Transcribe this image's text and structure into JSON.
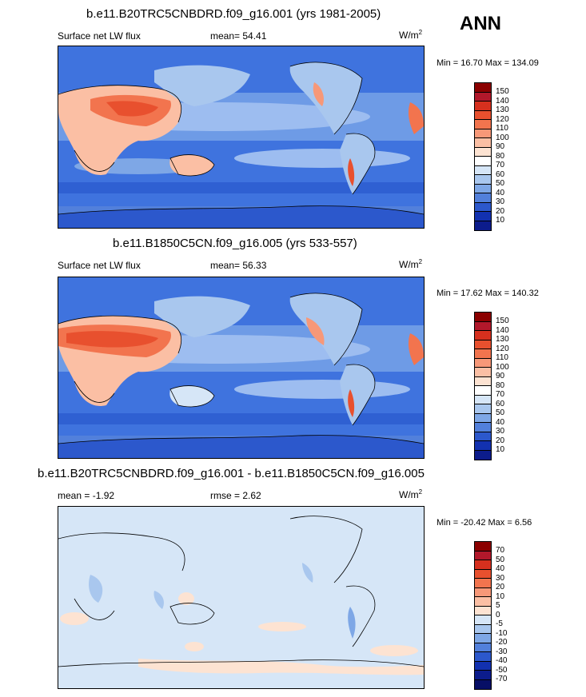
{
  "season": "ANN",
  "panels": [
    {
      "title": "b.e11.B20TRC5CNBDRD.f09_g16.001 (yrs 1981-2005)",
      "left_label": "Surface net LW flux",
      "center_label": "mean=  54.41",
      "units_base": "W/m",
      "units_sup": "2",
      "minmax": "Min =  16.70 Max = 134.09",
      "colorbar": {
        "labels": [
          "150",
          "140",
          "130",
          "120",
          "110",
          "100",
          "90",
          "80",
          "70",
          "60",
          "50",
          "40",
          "30",
          "20",
          "10"
        ],
        "colors": [
          "#8b0000",
          "#b2182b",
          "#d6301e",
          "#e8502e",
          "#f2744e",
          "#f79878",
          "#fbbfa4",
          "#fde3d2",
          "#ffffff",
          "#d6e6f7",
          "#a9c7ee",
          "#7ea7e6",
          "#5280db",
          "#2c58cc",
          "#1231b0",
          "#0c1c8c"
        ]
      }
    },
    {
      "title": "b.e11.B1850C5CN.f09_g16.005 (yrs 533-557)",
      "left_label": "Surface net LW flux",
      "center_label": "mean=  56.33",
      "units_base": "W/m",
      "units_sup": "2",
      "minmax": "Min =  17.62 Max = 140.32",
      "colorbar": {
        "labels": [
          "150",
          "140",
          "130",
          "120",
          "110",
          "100",
          "90",
          "80",
          "70",
          "60",
          "50",
          "40",
          "30",
          "20",
          "10"
        ],
        "colors": [
          "#8b0000",
          "#b2182b",
          "#d6301e",
          "#e8502e",
          "#f2744e",
          "#f79878",
          "#fbbfa4",
          "#fde3d2",
          "#ffffff",
          "#d6e6f7",
          "#a9c7ee",
          "#7ea7e6",
          "#5280db",
          "#2c58cc",
          "#1231b0",
          "#0c1c8c"
        ]
      }
    },
    {
      "title": "b.e11.B20TRC5CNBDRD.f09_g16.001 - b.e11.B1850C5CN.f09_g16.005",
      "left_label": "mean =  -1.92",
      "center_label": "rmse =   2.62",
      "units_base": "W/m",
      "units_sup": "2",
      "minmax": "Min = -20.42 Max =   6.56",
      "colorbar": {
        "labels": [
          "70",
          "50",
          "40",
          "30",
          "20",
          "10",
          "5",
          "0",
          "-5",
          "-10",
          "-20",
          "-30",
          "-40",
          "-50",
          "-70"
        ],
        "colors": [
          "#8b0000",
          "#b2182b",
          "#d6301e",
          "#e8502e",
          "#f2744e",
          "#f79878",
          "#fbbfa4",
          "#fde3d2",
          "#d6e6f7",
          "#a9c7ee",
          "#7ea7e6",
          "#5280db",
          "#2c58cc",
          "#1231b0",
          "#0c1c8c",
          "#070f66"
        ]
      }
    }
  ]
}
